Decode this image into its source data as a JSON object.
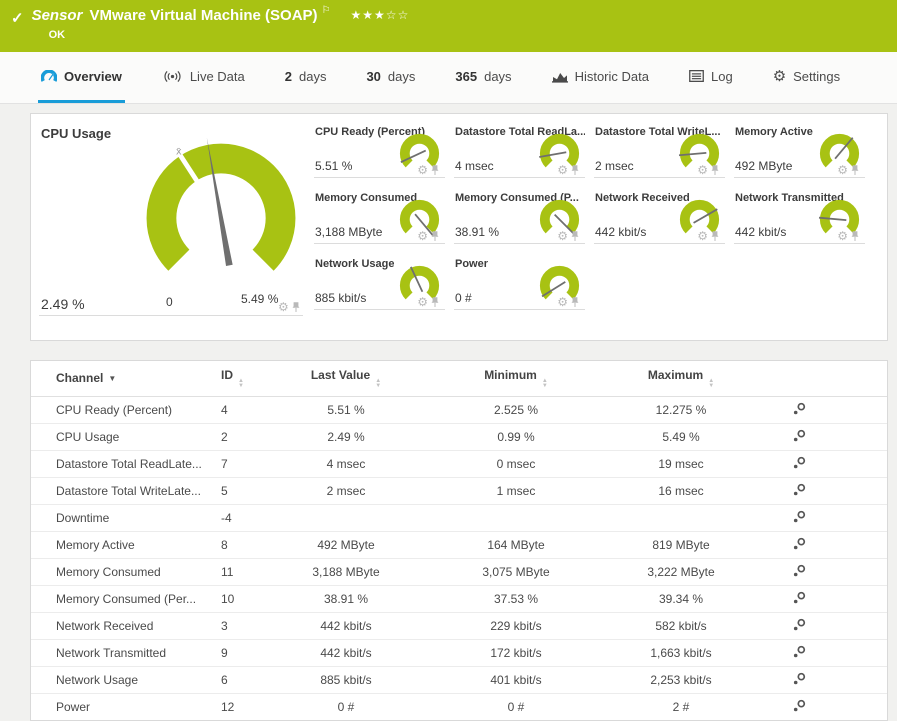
{
  "header": {
    "kind_label": "Sensor",
    "title": "VMware Virtual Machine (SOAP)",
    "status_text": "OK",
    "rating": {
      "filled": 3,
      "total": 5
    }
  },
  "tabs": [
    {
      "label": "Overview",
      "icon": "gauge-icon",
      "active": true
    },
    {
      "label": "Live Data",
      "icon": "live-icon"
    },
    {
      "num": "2",
      "unit": "days"
    },
    {
      "num": "30",
      "unit": "days"
    },
    {
      "num": "365",
      "unit": "days"
    },
    {
      "label": "Historic Data",
      "icon": "histogram-icon"
    },
    {
      "label": "Log",
      "icon": "log-icon"
    },
    {
      "label": "Settings",
      "icon": "gear-icon"
    }
  ],
  "main_gauge": {
    "label": "CPU Usage",
    "value": "2.49 %",
    "scale_min": "0",
    "scale_max": "5.49 %",
    "average_marker": "x̄",
    "needle_deg": -10,
    "avg_deg": -33
  },
  "mini_gauges": [
    {
      "label": "CPU Ready (Percent)",
      "value": "5.51 %",
      "needle_deg": -115
    },
    {
      "label": "Datastore Total ReadLa...",
      "value": "4 msec",
      "needle_deg": -100
    },
    {
      "label": "Datastore Total WriteL...",
      "value": "2 msec",
      "needle_deg": -95
    },
    {
      "label": "Memory Active",
      "value": "492 MByte",
      "needle_deg": 40
    },
    {
      "label": "Memory Consumed",
      "value": "3,188 MByte",
      "needle_deg": 140
    },
    {
      "label": "Memory Consumed (P...",
      "value": "38.91 %",
      "needle_deg": 135
    },
    {
      "label": "Network Received",
      "value": "442 kbit/s",
      "needle_deg": 60
    },
    {
      "label": "Network Transmitted",
      "value": "442 kbit/s",
      "needle_deg": -85
    },
    {
      "label": "Network Usage",
      "value": "885 kbit/s",
      "needle_deg": -25
    },
    {
      "label": "Power",
      "value": "0 #",
      "needle_deg": -122
    }
  ],
  "table": {
    "columns": [
      {
        "label": "Channel",
        "sort": "desc"
      },
      {
        "label": "ID",
        "sort": "both"
      },
      {
        "label": "Last Value",
        "sort": "both"
      },
      {
        "label": "Minimum",
        "sort": "both"
      },
      {
        "label": "Maximum",
        "sort": "both"
      },
      {
        "label": "",
        "sort": "none"
      }
    ],
    "rows": [
      {
        "channel": "CPU Ready (Percent)",
        "id": "4",
        "last": "5.51 %",
        "min": "2.525 %",
        "max": "12.275 %"
      },
      {
        "channel": "CPU Usage",
        "id": "2",
        "last": "2.49 %",
        "min": "0.99 %",
        "max": "5.49 %"
      },
      {
        "channel": "Datastore Total ReadLate...",
        "id": "7",
        "last": "4 msec",
        "min": "0 msec",
        "max": "19 msec"
      },
      {
        "channel": "Datastore Total WriteLate...",
        "id": "5",
        "last": "2 msec",
        "min": "1 msec",
        "max": "16 msec"
      },
      {
        "channel": "Downtime",
        "id": "-4",
        "last": "",
        "min": "",
        "max": ""
      },
      {
        "channel": "Memory Active",
        "id": "8",
        "last": "492 MByte",
        "min": "164 MByte",
        "max": "819 MByte"
      },
      {
        "channel": "Memory Consumed",
        "id": "11",
        "last": "3,188 MByte",
        "min": "3,075 MByte",
        "max": "3,222 MByte"
      },
      {
        "channel": "Memory Consumed (Per...",
        "id": "10",
        "last": "38.91 %",
        "min": "37.53 %",
        "max": "39.34 %"
      },
      {
        "channel": "Network Received",
        "id": "3",
        "last": "442 kbit/s",
        "min": "229 kbit/s",
        "max": "582 kbit/s"
      },
      {
        "channel": "Network Transmitted",
        "id": "9",
        "last": "442 kbit/s",
        "min": "172 kbit/s",
        "max": "1,663 kbit/s"
      },
      {
        "channel": "Network Usage",
        "id": "6",
        "last": "885 kbit/s",
        "min": "401 kbit/s",
        "max": "2,253 kbit/s"
      },
      {
        "channel": "Power",
        "id": "12",
        "last": "0 #",
        "min": "0 #",
        "max": "2 #"
      }
    ]
  },
  "colors": {
    "status_green": "#a8c213",
    "accent_blue": "#189cd8",
    "needle_gray": "#6f6f6f",
    "text_dark": "#3c3c3c",
    "border_gray": "#dcdcdc"
  }
}
